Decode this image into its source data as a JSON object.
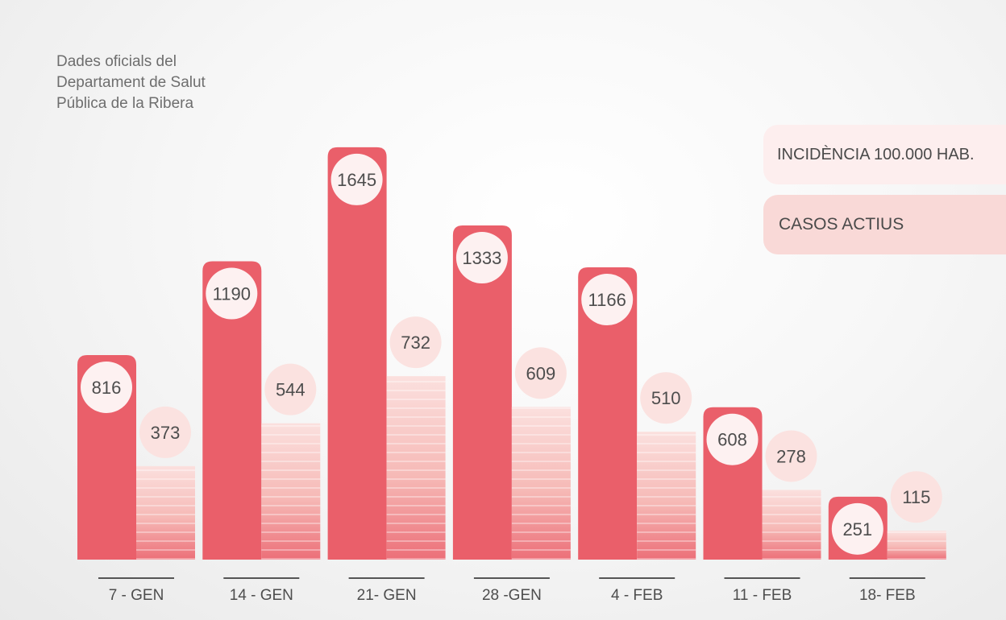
{
  "source_lines": [
    "Dades oficials del",
    "Departament de Salut",
    "Pública de la Ribera"
  ],
  "chart_data": {
    "type": "bar",
    "categories": [
      "7 - GEN",
      "14 - GEN",
      "21- GEN",
      "28 -GEN",
      "4 - FEB",
      "11 - FEB",
      "18- FEB"
    ],
    "series": [
      {
        "name": "INCIDÈNCIA 100.000 HAB.",
        "values": [
          816,
          1190,
          1645,
          1333,
          1166,
          608,
          251
        ],
        "color": "#ea5f6a"
      },
      {
        "name": "CASOS ACTIUS",
        "values": [
          373,
          544,
          732,
          609,
          510,
          278,
          115
        ],
        "color": "#f5b9b6"
      }
    ],
    "legend_position": "top-right",
    "grid": false
  }
}
